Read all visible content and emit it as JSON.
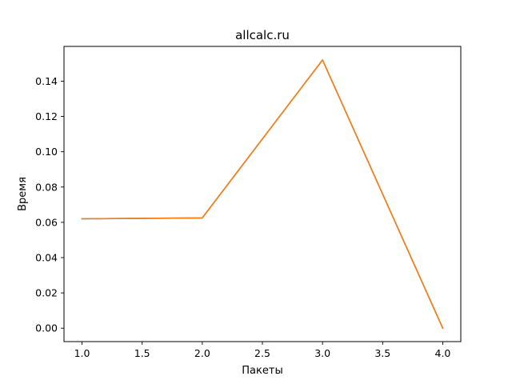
{
  "chart_data": {
    "type": "line",
    "title": "allcalc.ru",
    "xlabel": "Пакеты",
    "ylabel": "Время",
    "xlim": [
      0.85,
      4.15
    ],
    "ylim": [
      -0.0076,
      0.1597
    ],
    "grid": false,
    "x_ticks": [
      1.0,
      1.5,
      2.0,
      2.5,
      3.0,
      3.5,
      4.0
    ],
    "x_tick_labels": [
      "1.0",
      "1.5",
      "2.0",
      "2.5",
      "3.0",
      "3.5",
      "4.0"
    ],
    "y_ticks": [
      0.0,
      0.02,
      0.04,
      0.06,
      0.08,
      0.1,
      0.12,
      0.14
    ],
    "y_tick_labels": [
      "0.00",
      "0.02",
      "0.04",
      "0.06",
      "0.08",
      "0.10",
      "0.12",
      "0.14"
    ],
    "series": [
      {
        "color": "#1f77b4",
        "x": [
          1,
          2,
          3,
          4
        ],
        "y": [
          0.062,
          0.0625,
          0.152,
          0.0
        ]
      },
      {
        "color": "#ff7f0e",
        "x": [
          1,
          2,
          3,
          4
        ],
        "y": [
          0.062,
          0.0625,
          0.152,
          0.0
        ]
      }
    ]
  }
}
